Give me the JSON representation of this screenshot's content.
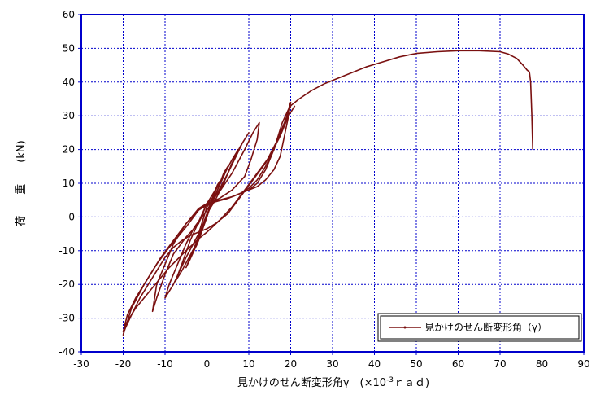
{
  "chart_data": {
    "type": "line",
    "xlabel": "見かけのせん断変形角γ　(×10",
    "xlabel_exp": "-3",
    "xlabel_unit": "ｒａｄ)",
    "ylabel": "荷　　重　　(kN)",
    "xlim": [
      -30,
      90
    ],
    "ylim": [
      -40,
      60
    ],
    "xticks": [
      "-30",
      "-20",
      "-10",
      "0",
      "10",
      "20",
      "30",
      "40",
      "50",
      "60",
      "70",
      "80",
      "90"
    ],
    "yticks": [
      "-40",
      "-30",
      "-20",
      "-10",
      "0",
      "10",
      "20",
      "30",
      "40",
      "50",
      "60"
    ],
    "grid": true,
    "legend_position": "bottom-right",
    "colors": {
      "series": "#7a1010",
      "axes": "#0000cc",
      "grid": "#0000cc"
    },
    "series": [
      {
        "name": "見かけのせん断変形角（γ）",
        "loops": [
          [
            [
              0,
              0
            ],
            [
              0.7,
              3.5
            ],
            [
              1.5,
              6.5
            ],
            [
              2.5,
              9.5
            ],
            [
              3,
              10.5
            ],
            [
              2.3,
              8.5
            ],
            [
              1.2,
              5
            ],
            [
              0,
              0.5
            ],
            [
              -0.8,
              -2
            ],
            [
              -1.6,
              -5
            ],
            [
              -2.5,
              -8.5
            ],
            [
              -3,
              -9.5
            ],
            [
              -2.3,
              -7
            ],
            [
              -1.2,
              -4
            ],
            [
              0,
              0
            ]
          ],
          [
            [
              0,
              0
            ],
            [
              1,
              3.8
            ],
            [
              2.5,
              8
            ],
            [
              4,
              12
            ],
            [
              5,
              15
            ],
            [
              4,
              13
            ],
            [
              2.5,
              8
            ],
            [
              0.5,
              2
            ],
            [
              -1,
              -3
            ],
            [
              -2.5,
              -8
            ],
            [
              -4,
              -12
            ],
            [
              -5,
              -15
            ],
            [
              -4,
              -12.5
            ],
            [
              -2,
              -7
            ],
            [
              0,
              0
            ]
          ],
          [
            [
              0,
              1
            ],
            [
              2,
              5
            ],
            [
              4,
              10
            ],
            [
              6,
              16
            ],
            [
              7.5,
              20
            ],
            [
              6,
              17
            ],
            [
              3,
              10
            ],
            [
              0,
              4
            ],
            [
              -2,
              -1.5
            ],
            [
              -4,
              -7
            ],
            [
              -6,
              -14
            ],
            [
              -7.5,
              -19
            ],
            [
              -6,
              -16
            ],
            [
              -3,
              -9
            ],
            [
              0,
              1
            ]
          ],
          [
            [
              0,
              3
            ],
            [
              2,
              6
            ],
            [
              4,
              10
            ],
            [
              6,
              16
            ],
            [
              8,
              21
            ],
            [
              10,
              25
            ],
            [
              8.5,
              22
            ],
            [
              5,
              13
            ],
            [
              2,
              6
            ],
            [
              0,
              2
            ],
            [
              -3,
              -3
            ],
            [
              -5,
              -8
            ],
            [
              -7,
              -14
            ],
            [
              -9,
              -20
            ],
            [
              -10,
              -24
            ],
            [
              -8,
              -20
            ],
            [
              -5,
              -12
            ],
            [
              -2,
              -5
            ],
            [
              0,
              3
            ]
          ],
          [
            [
              0,
              4
            ],
            [
              3,
              7.5
            ],
            [
              6,
              13
            ],
            [
              9,
              20
            ],
            [
              11,
              25
            ],
            [
              12.5,
              28
            ],
            [
              12,
              23
            ],
            [
              10.5,
              17
            ],
            [
              9,
              12
            ],
            [
              6,
              8
            ],
            [
              3,
              5.5
            ],
            [
              0,
              4
            ],
            [
              -2,
              2.5
            ],
            [
              -5,
              -2
            ],
            [
              -8,
              -8
            ],
            [
              -10,
              -14
            ],
            [
              -12,
              -20
            ],
            [
              -13,
              -28
            ],
            [
              -12,
              -24
            ],
            [
              -10,
              -17
            ],
            [
              -8,
              -11
            ],
            [
              -5,
              -6
            ],
            [
              -2,
              -2
            ],
            [
              0,
              4
            ]
          ],
          [
            [
              0,
              4
            ],
            [
              3,
              5
            ],
            [
              6,
              6
            ],
            [
              8,
              7
            ],
            [
              10,
              8
            ],
            [
              12,
              9
            ],
            [
              14,
              11
            ],
            [
              16,
              14
            ],
            [
              17.5,
              18
            ],
            [
              18.5,
              24
            ],
            [
              19.5,
              30
            ],
            [
              20,
              34
            ],
            [
              19.5,
              32
            ],
            [
              18,
              28
            ],
            [
              16,
              20
            ],
            [
              14,
              14
            ],
            [
              12,
              10
            ],
            [
              10,
              8
            ],
            [
              8,
              7
            ],
            [
              5,
              5.5
            ],
            [
              2,
              4.5
            ],
            [
              0,
              3.5
            ],
            [
              -2,
              2
            ],
            [
              -5,
              -2
            ],
            [
              -8,
              -7
            ],
            [
              -11,
              -12
            ],
            [
              -14,
              -18
            ],
            [
              -17,
              -24
            ],
            [
              -19,
              -29
            ],
            [
              -20,
              -34
            ],
            [
              -19.5,
              -33
            ],
            [
              -18,
              -29
            ],
            [
              -16,
              -24
            ],
            [
              -14,
              -20
            ],
            [
              -12,
              -16
            ],
            [
              -10,
              -12
            ],
            [
              -8,
              -9
            ],
            [
              -6,
              -7
            ],
            [
              -4,
              -5.5
            ],
            [
              -2,
              -4.5
            ],
            [
              0,
              -3.5
            ],
            [
              2,
              -2
            ],
            [
              5,
              1
            ],
            [
              8,
              6
            ],
            [
              11,
              11
            ],
            [
              14,
              16
            ],
            [
              16.5,
              22
            ],
            [
              18.5,
              28
            ],
            [
              20,
              33
            ]
          ],
          [
            [
              20,
              33
            ],
            [
              19.5,
              31
            ],
            [
              18,
              26
            ],
            [
              16,
              20
            ],
            [
              14,
              15
            ],
            [
              12,
              11
            ],
            [
              10,
              8.5
            ],
            [
              8,
              7
            ],
            [
              6,
              6
            ],
            [
              3,
              5
            ],
            [
              0,
              4
            ],
            [
              -2,
              2
            ],
            [
              -5,
              -3
            ],
            [
              -9,
              -9
            ],
            [
              -12,
              -14
            ],
            [
              -15,
              -20
            ],
            [
              -18,
              -27
            ],
            [
              -20,
              -35
            ],
            [
              -19.5,
              -32
            ],
            [
              -17,
              -27
            ],
            [
              -13,
              -21
            ],
            [
              -9,
              -15
            ],
            [
              -5,
              -10
            ],
            [
              -2,
              -6.5
            ],
            [
              0,
              -4.5
            ],
            [
              3,
              -1
            ],
            [
              6,
              3
            ],
            [
              9,
              8
            ],
            [
              12,
              13
            ],
            [
              15,
              18
            ],
            [
              17.5,
              24
            ],
            [
              19.5,
              30
            ],
            [
              21,
              33
            ]
          ]
        ],
        "envelope": [
          [
            20,
            33
          ],
          [
            22,
            35
          ],
          [
            25,
            37.5
          ],
          [
            28,
            39.5
          ],
          [
            30,
            40.5
          ],
          [
            34,
            42.5
          ],
          [
            38,
            44.5
          ],
          [
            42,
            46
          ],
          [
            46,
            47.5
          ],
          [
            50,
            48.5
          ],
          [
            55,
            49
          ],
          [
            60,
            49.3
          ],
          [
            65,
            49.3
          ],
          [
            70,
            49
          ],
          [
            72,
            48.3
          ],
          [
            74,
            47
          ],
          [
            75.5,
            45
          ],
          [
            76.5,
            43.5
          ],
          [
            77,
            43
          ],
          [
            77.3,
            40
          ],
          [
            77.6,
            30
          ],
          [
            77.8,
            20
          ]
        ]
      }
    ]
  }
}
